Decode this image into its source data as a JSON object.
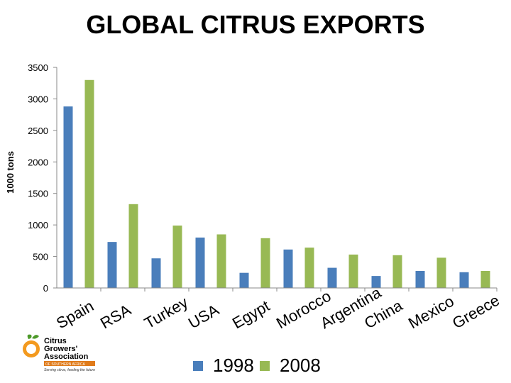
{
  "chart_data": {
    "type": "bar",
    "title": "GLOBAL CITRUS EXPORTS",
    "xlabel": "",
    "ylabel": "1000 tons",
    "ylim": [
      0,
      3500
    ],
    "yticks": [
      0,
      500,
      1000,
      1500,
      2000,
      2500,
      3000,
      3500
    ],
    "categories": [
      "Spain",
      "RSA",
      "Turkey",
      "USA",
      "Egypt",
      "Morocco",
      "Argentina",
      "China",
      "Mexico",
      "Greece"
    ],
    "series": [
      {
        "name": "1998",
        "color": "#4a7ebb",
        "values": [
          2880,
          730,
          470,
          800,
          240,
          610,
          320,
          190,
          270,
          250
        ]
      },
      {
        "name": "2008",
        "color": "#98b954",
        "values": [
          3300,
          1330,
          990,
          850,
          790,
          640,
          530,
          520,
          480,
          270
        ]
      }
    ],
    "legend_position": "bottom"
  },
  "logo": {
    "line1": "Citrus",
    "line2": "Growers'",
    "line3": "Association",
    "band": "OF SOUTHERN AFRICA",
    "tagline": "Serving citrus, feeding the future"
  }
}
